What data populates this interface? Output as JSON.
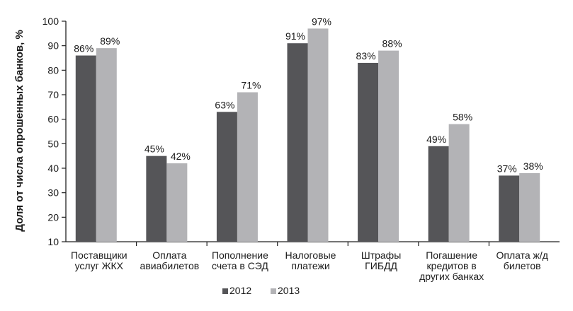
{
  "chart_data": {
    "type": "bar",
    "title": "",
    "xlabel": "",
    "ylabel": "Доля от числа опрошенных банков, %",
    "ylim": [
      10,
      100
    ],
    "yticks": [
      10,
      20,
      30,
      40,
      50,
      60,
      70,
      80,
      90,
      100
    ],
    "grid": false,
    "legend_position": "bottom-left",
    "categories": [
      [
        "Поставщики",
        "услуг ЖКХ"
      ],
      [
        "Оплата",
        "авиабилетов"
      ],
      [
        "Пополнение",
        "счета в СЭД"
      ],
      [
        "Налоговые",
        "платежи"
      ],
      [
        "Штрафы",
        "ГИБДД"
      ],
      [
        "Погашение",
        "кредитов в",
        "других банках"
      ],
      [
        "Оплата ж/д",
        "билетов"
      ]
    ],
    "series": [
      {
        "name": "2012",
        "color": "#555558",
        "values": [
          86,
          45,
          63,
          91,
          83,
          49,
          37
        ],
        "labels": [
          "86%",
          "45%",
          "63%",
          "91%",
          "83%",
          "49%",
          "37%"
        ]
      },
      {
        "name": "2013",
        "color": "#b3b3b6",
        "values": [
          89,
          42,
          71,
          97,
          88,
          58,
          38
        ],
        "labels": [
          "89%",
          "42%",
          "71%",
          "97%",
          "88%",
          "58%",
          "38%"
        ]
      }
    ]
  }
}
